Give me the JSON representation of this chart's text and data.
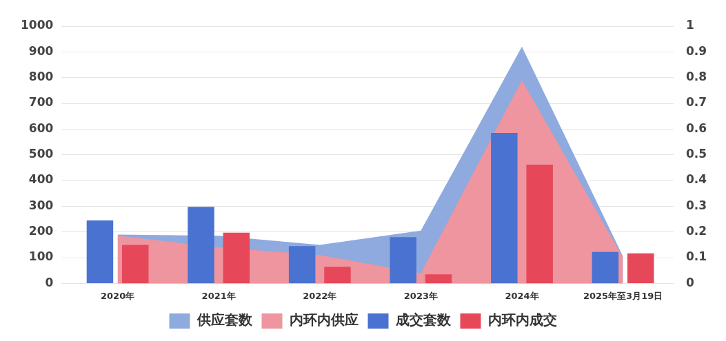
{
  "chart_data": {
    "type": "bar",
    "categories": [
      "2020年",
      "2021年",
      "2022年",
      "2023年",
      "2024年",
      "2025年至3月19日"
    ],
    "series": [
      {
        "name": "供应套数",
        "type": "area",
        "color": "#8eaadf",
        "values": [
          190,
          185,
          150,
          205,
          920,
          105
        ]
      },
      {
        "name": "内环内供应",
        "type": "area",
        "color": "#ee959f",
        "values": [
          185,
          140,
          110,
          40,
          790,
          100
        ]
      },
      {
        "name": "成交套数",
        "color": "#4a72d0",
        "values": [
          245,
          298,
          145,
          180,
          585,
          122
        ]
      },
      {
        "name": "内环内成交",
        "color": "#e6485a",
        "values": [
          150,
          197,
          65,
          35,
          462,
          117
        ]
      }
    ],
    "ylim": [
      0,
      1000
    ],
    "yticks": [
      0,
      100,
      200,
      300,
      400,
      500,
      600,
      700,
      800,
      900,
      1000
    ],
    "y2lim": [
      0,
      1
    ],
    "y2ticks": [
      0,
      0.1,
      0.2,
      0.3,
      0.4,
      0.5,
      0.6,
      0.7,
      0.8,
      0.9,
      1
    ],
    "grid": "y",
    "legend": "bottom",
    "marker": "none"
  }
}
